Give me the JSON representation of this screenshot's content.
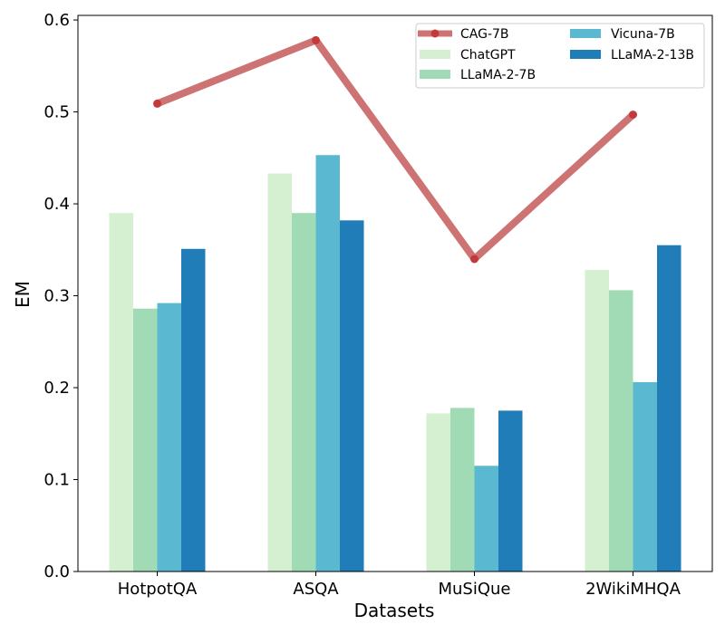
{
  "chart_data": {
    "type": "bar",
    "xlabel": "Datasets",
    "ylabel": "EM",
    "ylim": [
      0,
      0.605
    ],
    "yticks": [
      "0.0",
      "0.1",
      "0.2",
      "0.3",
      "0.4",
      "0.5",
      "0.6"
    ],
    "categories": [
      "HotpotQA",
      "ASQA",
      "MuSiQue",
      "2WikiMHQA"
    ],
    "series": [
      {
        "name": "ChatGPT",
        "color": "#d5efd1",
        "values": [
          0.39,
          0.433,
          0.172,
          0.328
        ]
      },
      {
        "name": "LLaMA-2-7B",
        "color": "#a1dbb6",
        "values": [
          0.286,
          0.39,
          0.178,
          0.306
        ]
      },
      {
        "name": "Vicuna-7B",
        "color": "#5bb8d1",
        "values": [
          0.292,
          0.453,
          0.115,
          0.206
        ]
      },
      {
        "name": "LLaMA-2-13B",
        "color": "#207db8",
        "values": [
          0.351,
          0.382,
          0.175,
          0.355
        ]
      }
    ],
    "line_series": {
      "name": "CAG-7B",
      "color": "#cd7373",
      "marker_color": "#c43a3a",
      "values": [
        0.509,
        0.578,
        0.34,
        0.497
      ]
    },
    "legend_position": "top-right",
    "grid": false
  }
}
